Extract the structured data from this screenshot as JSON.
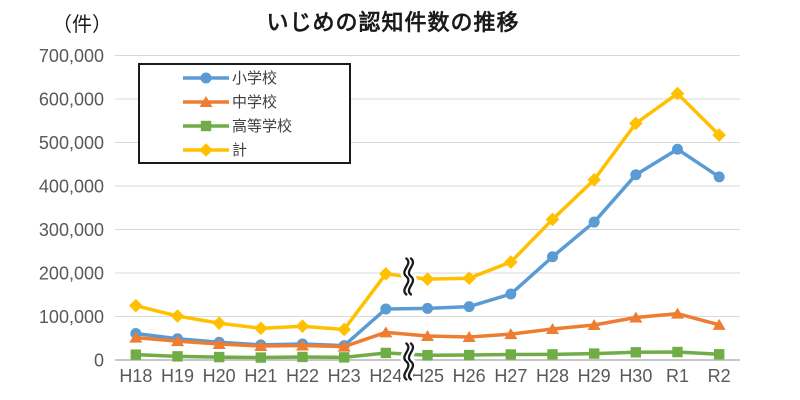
{
  "chart_data": {
    "type": "line",
    "title": "いじめの認知件数の推移",
    "unit": "（件）",
    "categories": [
      "H18",
      "H19",
      "H20",
      "H21",
      "H22",
      "H23",
      "H24",
      "H25",
      "H26",
      "H27",
      "H28",
      "H29",
      "H30",
      "R1",
      "R2"
    ],
    "series": [
      {
        "id": "elementary-school",
        "name": "小学校",
        "color": "#5B9BD5",
        "marker": "circle",
        "values": [
          60897,
          48896,
          40807,
          34766,
          36909,
          33124,
          117384,
          118748,
          122734,
          151692,
          237256,
          317121,
          425844,
          484545,
          420897
        ]
      },
      {
        "id": "junior-high-school",
        "name": "中学校",
        "color": "#ED7D31",
        "marker": "triangle",
        "values": [
          51310,
          43505,
          36795,
          32111,
          33323,
          30749,
          63634,
          55248,
          52971,
          59502,
          71309,
          80424,
          97704,
          106524,
          80877
        ]
      },
      {
        "id": "high-school",
        "name": "高等学校",
        "color": "#70AD47",
        "marker": "square",
        "values": [
          12307,
          8355,
          6737,
          5642,
          7018,
          6020,
          16274,
          11039,
          11404,
          12664,
          12874,
          14789,
          17709,
          18352,
          13126
        ]
      },
      {
        "id": "total",
        "name": "計",
        "color": "#FFC000",
        "marker": "diamond",
        "values": [
          124898,
          101097,
          84648,
          72778,
          77630,
          70231,
          198109,
          185803,
          188072,
          225132,
          323143,
          414378,
          543933,
          612496,
          517163
        ]
      }
    ],
    "ylim": [
      0,
      700000
    ],
    "yticks": [
      {
        "value": 0,
        "label": "0"
      },
      {
        "value": 100000,
        "label": "100,000"
      },
      {
        "value": 200000,
        "label": "200,000"
      },
      {
        "value": 300000,
        "label": "300,000"
      },
      {
        "value": 400000,
        "label": "400,000"
      },
      {
        "value": 500000,
        "label": "500,000"
      },
      {
        "value": 600000,
        "label": "600,000"
      },
      {
        "value": 700000,
        "label": "700,000"
      }
    ],
    "grid": true,
    "legend_position": "inside-top-left",
    "annotations": [
      {
        "type": "break-mark",
        "target": "series:計",
        "between": [
          "H24",
          "H25"
        ]
      },
      {
        "type": "break-mark",
        "target": "x-axis",
        "between": [
          "H24",
          "H25"
        ]
      }
    ]
  },
  "colors": {
    "grid": "#D9D9D9",
    "baseline": "#BFBFBF",
    "axis_text": "#595959",
    "legend_text": "#404040",
    "title_text": "#1A1A1A",
    "break_mark": "#1A1A1A"
  }
}
